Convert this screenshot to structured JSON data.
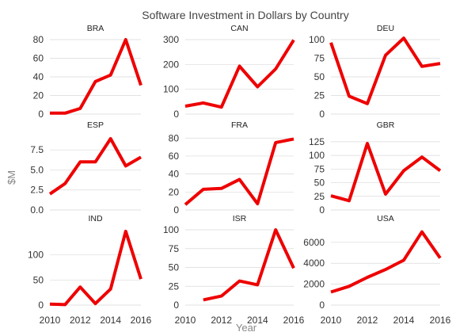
{
  "chart_data": {
    "type": "line",
    "title": "Software Investment in Dollars by Country",
    "xlabel": "Year",
    "ylabel": "$M",
    "line_color": "#ee0000",
    "x_ticks": [
      "2010",
      "2012",
      "2014",
      "2016"
    ],
    "x_tick_values": [
      2010,
      2012,
      2014,
      2016
    ],
    "xlim": [
      2010,
      2016
    ],
    "panels": [
      {
        "name": "BRA",
        "ylim": [
          0,
          80
        ],
        "y_ticks": [
          0,
          20,
          40,
          60,
          80
        ],
        "y_tick_labels": [
          "0",
          "20",
          "40",
          "60",
          "80"
        ],
        "x": [
          2010,
          2011,
          2012,
          2013,
          2014,
          2015,
          2016
        ],
        "values": [
          1,
          1,
          6,
          35,
          42,
          80,
          31
        ]
      },
      {
        "name": "CAN",
        "ylim": [
          0,
          300
        ],
        "y_ticks": [
          0,
          100,
          200,
          300
        ],
        "y_tick_labels": [
          "0",
          "100",
          "200",
          "300"
        ],
        "x": [
          2010,
          2011,
          2012,
          2013,
          2014,
          2015,
          2016
        ],
        "values": [
          32,
          45,
          28,
          193,
          110,
          182,
          298
        ]
      },
      {
        "name": "DEU",
        "ylim": [
          0,
          100
        ],
        "y_ticks": [
          0,
          25,
          50,
          75,
          100
        ],
        "y_tick_labels": [
          "0",
          "25",
          "50",
          "75",
          "100"
        ],
        "x": [
          2010,
          2011,
          2012,
          2013,
          2014,
          2015,
          2016
        ],
        "values": [
          96,
          24,
          14,
          79,
          102,
          64,
          68
        ]
      },
      {
        "name": "ESP",
        "ylim": [
          0,
          9.2
        ],
        "y_ticks": [
          0,
          2.5,
          5,
          7.5
        ],
        "y_tick_labels": [
          "0.0",
          "2.5",
          "5.0",
          "7.5"
        ],
        "x": [
          2010,
          2011,
          2012,
          2013,
          2014,
          2015,
          2016
        ],
        "values": [
          2.0,
          3.3,
          6.0,
          6.0,
          8.9,
          5.5,
          6.6
        ]
      },
      {
        "name": "FRA",
        "ylim": [
          0,
          82
        ],
        "y_ticks": [
          0,
          20,
          40,
          60,
          80
        ],
        "y_tick_labels": [
          "0",
          "20",
          "40",
          "60",
          "80"
        ],
        "x": [
          2010,
          2011,
          2012,
          2013,
          2014,
          2015,
          2016
        ],
        "values": [
          6,
          23,
          24,
          34,
          7,
          75,
          79
        ]
      },
      {
        "name": "GBR",
        "ylim": [
          0,
          135
        ],
        "y_ticks": [
          0,
          25,
          50,
          75,
          100,
          125
        ],
        "y_tick_labels": [
          "0",
          "25",
          "50",
          "75",
          "100",
          "125"
        ],
        "x": [
          2010,
          2011,
          2012,
          2013,
          2014,
          2015,
          2016
        ],
        "values": [
          26,
          17,
          122,
          29,
          72,
          97,
          72
        ]
      },
      {
        "name": "IND",
        "ylim": [
          0,
          150
        ],
        "y_ticks": [
          0,
          50,
          100
        ],
        "y_tick_labels": [
          "0",
          "50",
          "100"
        ],
        "x": [
          2010,
          2011,
          2012,
          2013,
          2014,
          2015,
          2016
        ],
        "values": [
          2,
          1,
          36,
          3,
          32,
          147,
          52
        ]
      },
      {
        "name": "ISR",
        "ylim": [
          0,
          100
        ],
        "y_ticks": [
          0,
          25,
          50,
          75,
          100
        ],
        "y_tick_labels": [
          "0",
          "25",
          "50",
          "75",
          "100"
        ],
        "x": [
          2011,
          2012,
          2013,
          2014,
          2015,
          2016
        ],
        "values": [
          7,
          12,
          32,
          27,
          100,
          49
        ]
      },
      {
        "name": "USA",
        "ylim": [
          0,
          7200
        ],
        "y_ticks": [
          0,
          2000,
          4000,
          6000
        ],
        "y_tick_labels": [
          "0",
          "2000",
          "4000",
          "6000"
        ],
        "x": [
          2010,
          2011,
          2012,
          2013,
          2014,
          2015,
          2016
        ],
        "values": [
          1250,
          1800,
          2650,
          3400,
          4300,
          7000,
          4500
        ]
      }
    ]
  }
}
